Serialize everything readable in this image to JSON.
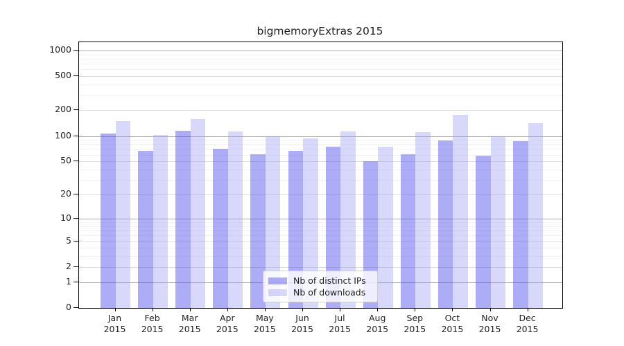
{
  "chart_data": {
    "type": "bar",
    "title": "bigmemoryExtras 2015",
    "categories": [
      "Jan",
      "Feb",
      "Mar",
      "Apr",
      "May",
      "Jun",
      "Jul",
      "Aug",
      "Sep",
      "Oct",
      "Nov",
      "Dec"
    ],
    "category_year": "2015",
    "series": [
      {
        "name": "Nb of distinct IPs",
        "values": [
          107,
          67,
          116,
          70,
          61,
          67,
          75,
          50,
          61,
          88,
          59,
          87
        ]
      },
      {
        "name": "Nb of downloads",
        "values": [
          150,
          102,
          158,
          112,
          97,
          94,
          112,
          75,
          111,
          177,
          100,
          141
        ]
      }
    ],
    "y_ticks": [
      1000,
      500,
      200,
      100,
      50,
      20,
      10,
      5,
      2,
      1,
      0
    ],
    "y_scale": "log10(value+1), 0 at baseline",
    "ylim": [
      0,
      1250
    ],
    "grid": true,
    "legend_position": "bottom-center"
  },
  "colors": {
    "bar_distinct_ips": "rgba(79,79,238,0.47)",
    "bar_downloads": "rgba(150,150,242,0.37)",
    "grid_minor": "#f2f2f2",
    "grid_major": "#dddddd",
    "grid_power10": "#ababab",
    "axis_line": "#000000",
    "text": "#1f1f1f",
    "legend_border": "#cccccc"
  }
}
